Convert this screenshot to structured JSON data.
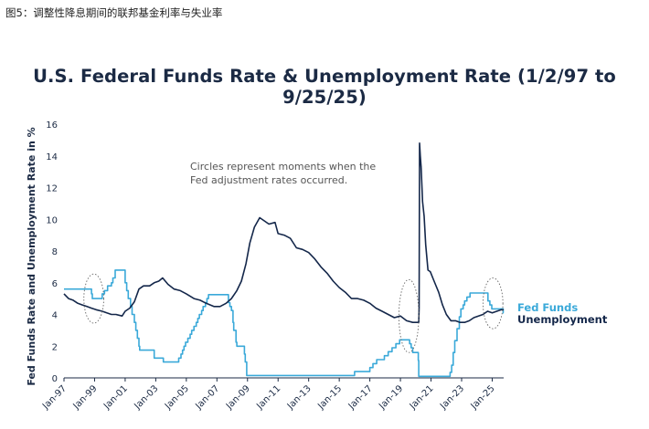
{
  "page": {
    "caption": "图5：调整性降息期间的联邦基金利率与失业率"
  },
  "chart_data": {
    "type": "line",
    "title": "U.S. Federal Funds Rate & Unemployment Rate (1/2/97 to 9/25/25)",
    "ylabel": "Fed Funds Rate and Unemployment Rate in %",
    "xlabel": "",
    "ylim": [
      0,
      16
    ],
    "xlim": [
      1997.0,
      2025.75
    ],
    "yticks": [
      0,
      2,
      4,
      6,
      8,
      10,
      12,
      14,
      16
    ],
    "xticks": [
      {
        "label": "Jan-97",
        "x": 1997.0
      },
      {
        "label": "Jan-99",
        "x": 1999.0
      },
      {
        "label": "Jan-01",
        "x": 2001.0
      },
      {
        "label": "Jan-03",
        "x": 2003.0
      },
      {
        "label": "Jan-05",
        "x": 2005.0
      },
      {
        "label": "Jan-07",
        "x": 2007.0
      },
      {
        "label": "Jan-09",
        "x": 2009.0
      },
      {
        "label": "Jan-11",
        "x": 2011.0
      },
      {
        "label": "Jan-13",
        "x": 2013.0
      },
      {
        "label": "Jan-15",
        "x": 2015.0
      },
      {
        "label": "Jan-17",
        "x": 2017.0
      },
      {
        "label": "Jan-19",
        "x": 2019.0
      },
      {
        "label": "Jan-21",
        "x": 2021.0
      },
      {
        "label": "Jan-23",
        "x": 2023.0
      },
      {
        "label": "Jan-25",
        "x": 2025.0
      }
    ],
    "grid": false,
    "legend_position": "right",
    "annotation": [
      "Circles represent moments when the",
      "Fed adjustment rates occurred."
    ],
    "series": [
      {
        "name": "Fed Funds",
        "color": "#3aa9d9",
        "step": true,
        "points": [
          [
            1997.0,
            5.6
          ],
          [
            1998.75,
            5.6
          ],
          [
            1998.8,
            5.3
          ],
          [
            1998.85,
            5.0
          ],
          [
            1999.45,
            5.0
          ],
          [
            1999.5,
            5.3
          ],
          [
            1999.65,
            5.5
          ],
          [
            1999.85,
            5.8
          ],
          [
            2000.1,
            6.0
          ],
          [
            2000.2,
            6.3
          ],
          [
            2000.35,
            6.8
          ],
          [
            2000.95,
            6.8
          ],
          [
            2001.0,
            6.0
          ],
          [
            2001.1,
            5.5
          ],
          [
            2001.2,
            5.0
          ],
          [
            2001.35,
            4.5
          ],
          [
            2001.45,
            4.0
          ],
          [
            2001.6,
            3.5
          ],
          [
            2001.7,
            3.0
          ],
          [
            2001.8,
            2.5
          ],
          [
            2001.9,
            2.0
          ],
          [
            2001.95,
            1.75
          ],
          [
            2002.85,
            1.75
          ],
          [
            2002.9,
            1.25
          ],
          [
            2003.45,
            1.25
          ],
          [
            2003.5,
            1.0
          ],
          [
            2004.45,
            1.0
          ],
          [
            2004.5,
            1.25
          ],
          [
            2004.65,
            1.5
          ],
          [
            2004.75,
            1.75
          ],
          [
            2004.85,
            2.0
          ],
          [
            2004.95,
            2.25
          ],
          [
            2005.1,
            2.5
          ],
          [
            2005.25,
            2.75
          ],
          [
            2005.35,
            3.0
          ],
          [
            2005.5,
            3.25
          ],
          [
            2005.65,
            3.5
          ],
          [
            2005.75,
            3.75
          ],
          [
            2005.85,
            4.0
          ],
          [
            2006.0,
            4.25
          ],
          [
            2006.1,
            4.5
          ],
          [
            2006.25,
            4.75
          ],
          [
            2006.35,
            5.0
          ],
          [
            2006.45,
            5.25
          ],
          [
            2007.7,
            5.25
          ],
          [
            2007.75,
            4.75
          ],
          [
            2007.85,
            4.5
          ],
          [
            2007.95,
            4.25
          ],
          [
            2008.05,
            3.5
          ],
          [
            2008.1,
            3.0
          ],
          [
            2008.25,
            2.25
          ],
          [
            2008.3,
            2.0
          ],
          [
            2008.75,
            2.0
          ],
          [
            2008.8,
            1.5
          ],
          [
            2008.85,
            1.0
          ],
          [
            2008.95,
            0.15
          ],
          [
            2015.95,
            0.15
          ],
          [
            2016.0,
            0.4
          ],
          [
            2016.95,
            0.4
          ],
          [
            2017.0,
            0.65
          ],
          [
            2017.2,
            0.9
          ],
          [
            2017.45,
            1.15
          ],
          [
            2017.95,
            1.4
          ],
          [
            2018.2,
            1.65
          ],
          [
            2018.45,
            1.9
          ],
          [
            2018.7,
            2.15
          ],
          [
            2018.95,
            2.4
          ],
          [
            2019.55,
            2.4
          ],
          [
            2019.6,
            2.15
          ],
          [
            2019.7,
            1.9
          ],
          [
            2019.8,
            1.6
          ],
          [
            2020.15,
            1.6
          ],
          [
            2020.17,
            1.1
          ],
          [
            2020.2,
            0.1
          ],
          [
            2022.2,
            0.1
          ],
          [
            2022.25,
            0.35
          ],
          [
            2022.35,
            0.8
          ],
          [
            2022.45,
            1.6
          ],
          [
            2022.55,
            2.35
          ],
          [
            2022.7,
            3.1
          ],
          [
            2022.85,
            3.85
          ],
          [
            2022.95,
            4.35
          ],
          [
            2023.1,
            4.6
          ],
          [
            2023.2,
            4.85
          ],
          [
            2023.35,
            5.1
          ],
          [
            2023.55,
            5.35
          ],
          [
            2023.6,
            5.35
          ],
          [
            2024.7,
            5.35
          ],
          [
            2024.72,
            4.85
          ],
          [
            2024.85,
            4.6
          ],
          [
            2024.97,
            4.35
          ],
          [
            2025.7,
            4.35
          ],
          [
            2025.72,
            4.1
          ],
          [
            2025.75,
            4.1
          ]
        ]
      },
      {
        "name": "Unemployment",
        "color": "#14274a",
        "step": false,
        "points": [
          [
            1997.0,
            5.3
          ],
          [
            1997.3,
            5.0
          ],
          [
            1997.6,
            4.9
          ],
          [
            1997.9,
            4.7
          ],
          [
            1998.2,
            4.6
          ],
          [
            1998.5,
            4.5
          ],
          [
            1998.8,
            4.4
          ],
          [
            1999.1,
            4.3
          ],
          [
            1999.5,
            4.2
          ],
          [
            1999.8,
            4.1
          ],
          [
            2000.1,
            4.0
          ],
          [
            2000.4,
            4.0
          ],
          [
            2000.8,
            3.9
          ],
          [
            2001.0,
            4.2
          ],
          [
            2001.3,
            4.4
          ],
          [
            2001.6,
            4.8
          ],
          [
            2001.9,
            5.6
          ],
          [
            2002.2,
            5.8
          ],
          [
            2002.6,
            5.8
          ],
          [
            2002.9,
            6.0
          ],
          [
            2003.2,
            6.1
          ],
          [
            2003.45,
            6.3
          ],
          [
            2003.8,
            5.9
          ],
          [
            2004.2,
            5.6
          ],
          [
            2004.6,
            5.5
          ],
          [
            2005.0,
            5.3
          ],
          [
            2005.5,
            5.0
          ],
          [
            2005.9,
            4.9
          ],
          [
            2006.3,
            4.7
          ],
          [
            2006.8,
            4.5
          ],
          [
            2007.2,
            4.5
          ],
          [
            2007.6,
            4.7
          ],
          [
            2007.95,
            5.0
          ],
          [
            2008.3,
            5.5
          ],
          [
            2008.6,
            6.1
          ],
          [
            2008.9,
            7.2
          ],
          [
            2009.15,
            8.5
          ],
          [
            2009.45,
            9.5
          ],
          [
            2009.8,
            10.1
          ],
          [
            2010.1,
            9.9
          ],
          [
            2010.4,
            9.7
          ],
          [
            2010.8,
            9.8
          ],
          [
            2011.0,
            9.1
          ],
          [
            2011.4,
            9.0
          ],
          [
            2011.8,
            8.8
          ],
          [
            2012.2,
            8.2
          ],
          [
            2012.6,
            8.1
          ],
          [
            2013.0,
            7.9
          ],
          [
            2013.4,
            7.5
          ],
          [
            2013.8,
            7.0
          ],
          [
            2014.2,
            6.6
          ],
          [
            2014.6,
            6.1
          ],
          [
            2015.0,
            5.7
          ],
          [
            2015.4,
            5.4
          ],
          [
            2015.8,
            5.0
          ],
          [
            2016.2,
            5.0
          ],
          [
            2016.6,
            4.9
          ],
          [
            2017.0,
            4.7
          ],
          [
            2017.4,
            4.4
          ],
          [
            2017.8,
            4.2
          ],
          [
            2018.2,
            4.0
          ],
          [
            2018.6,
            3.8
          ],
          [
            2019.0,
            3.9
          ],
          [
            2019.4,
            3.6
          ],
          [
            2019.8,
            3.5
          ],
          [
            2020.2,
            3.5
          ],
          [
            2020.22,
            4.4
          ],
          [
            2020.25,
            14.8
          ],
          [
            2020.3,
            14.0
          ],
          [
            2020.35,
            13.3
          ],
          [
            2020.45,
            11.1
          ],
          [
            2020.55,
            10.2
          ],
          [
            2020.65,
            8.4
          ],
          [
            2020.8,
            6.8
          ],
          [
            2020.95,
            6.7
          ],
          [
            2021.2,
            6.1
          ],
          [
            2021.5,
            5.4
          ],
          [
            2021.75,
            4.6
          ],
          [
            2022.0,
            4.0
          ],
          [
            2022.3,
            3.6
          ],
          [
            2022.6,
            3.6
          ],
          [
            2022.9,
            3.5
          ],
          [
            2023.2,
            3.5
          ],
          [
            2023.5,
            3.6
          ],
          [
            2023.8,
            3.8
          ],
          [
            2024.1,
            3.9
          ],
          [
            2024.4,
            4.0
          ],
          [
            2024.7,
            4.2
          ],
          [
            2025.0,
            4.1
          ],
          [
            2025.3,
            4.2
          ],
          [
            2025.6,
            4.3
          ],
          [
            2025.75,
            4.3
          ]
        ]
      }
    ],
    "circles": [
      {
        "x": 1998.95,
        "y": 5.0,
        "rx": 0.65,
        "ry": 1.55
      },
      {
        "x": 2019.55,
        "y": 3.9,
        "rx": 0.65,
        "ry": 2.3
      },
      {
        "x": 2025.05,
        "y": 4.7,
        "rx": 0.65,
        "ry": 1.6
      }
    ]
  }
}
